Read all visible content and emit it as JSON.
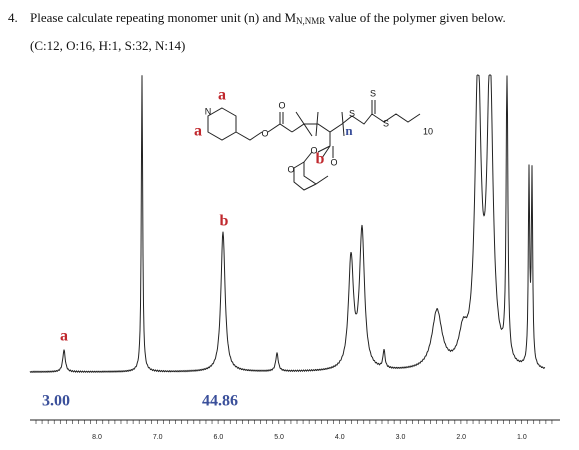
{
  "question": {
    "number": "4.",
    "text_before": "Please calculate repeating monomer unit (n) and M",
    "subscript": "N,NMR",
    "text_after": "value of the polymer given below.",
    "masses": "(C:12, O:16, H:1, S:32, N:14)"
  },
  "structure": {
    "nitrogen": "N",
    "label_a_top": "a",
    "label_a_left": "a",
    "ester_o1": "O",
    "ester_o2": "O",
    "ester_o3": "O",
    "ester_o4": "O",
    "ring_o": "O",
    "sulfur1": "S",
    "sulfur2": "S",
    "sulfur3": "S",
    "repeat": "n",
    "chain": "10",
    "label_b": "b"
  },
  "spectrum": {
    "peak_a": "a",
    "peak_b": "b",
    "integral_a": "3.00",
    "integral_b": "44.86",
    "axis_ticks": [
      "8.0",
      "7.0",
      "6.0",
      "5.0",
      "4.0",
      "3.0",
      "2.0",
      "1.0"
    ]
  }
}
